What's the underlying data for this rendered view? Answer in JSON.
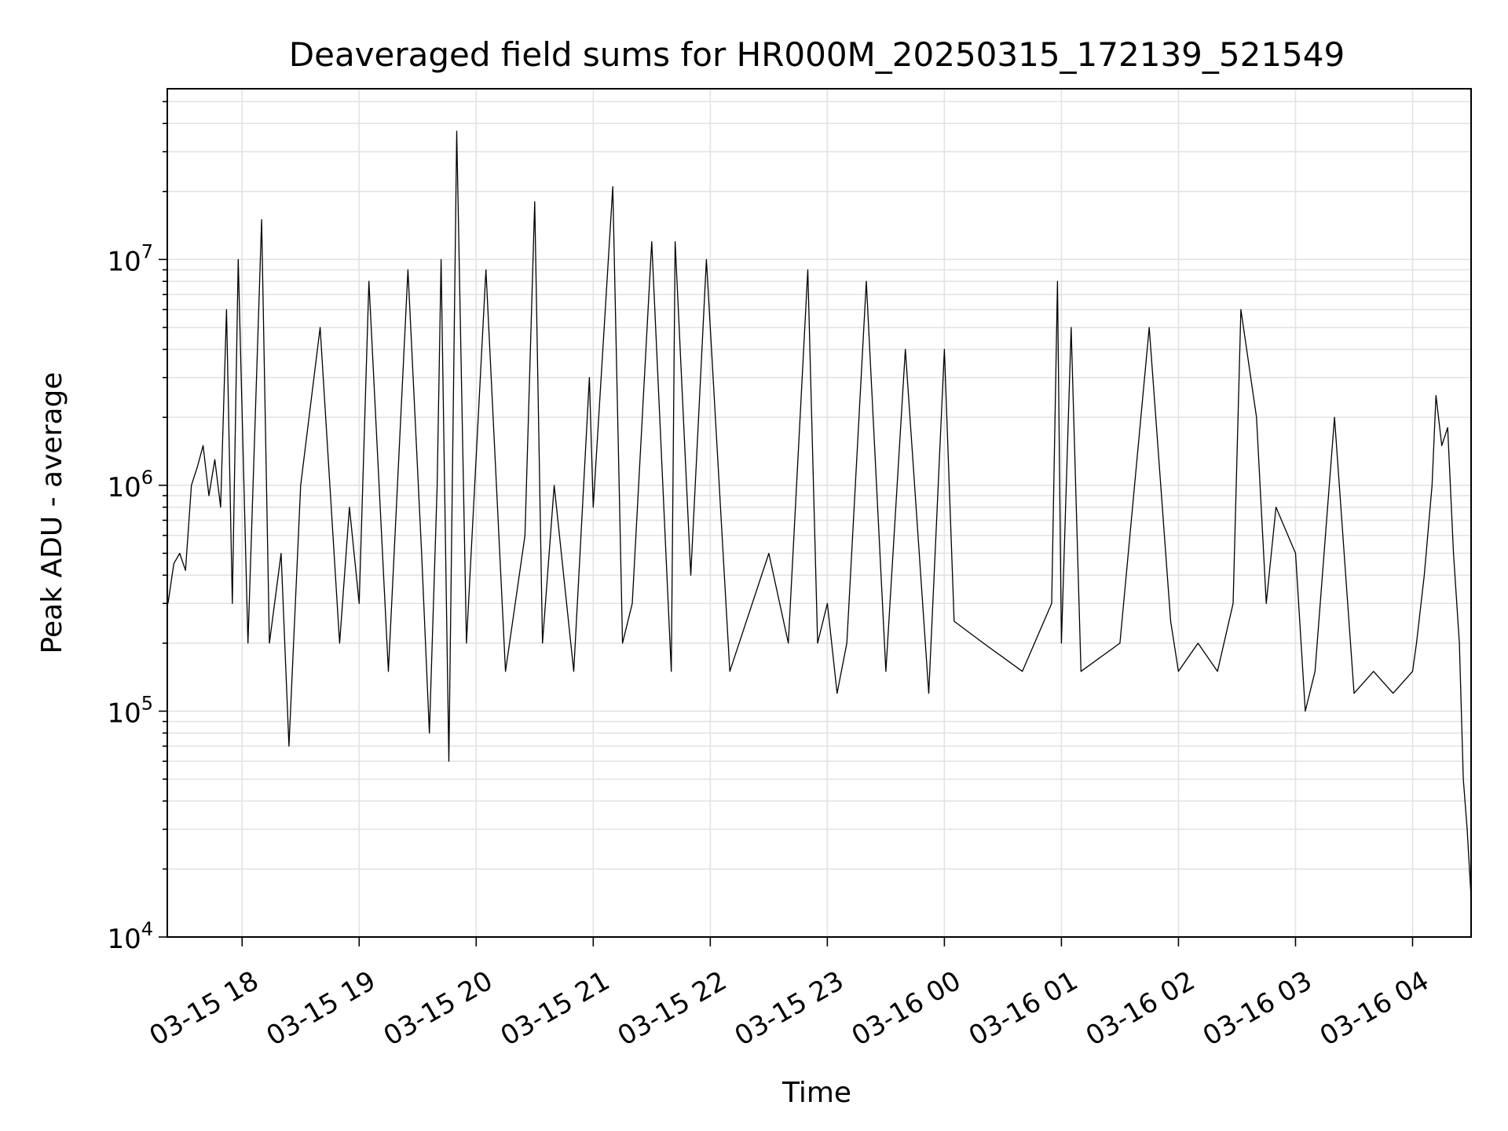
{
  "chart_data": {
    "type": "line",
    "title": "Deaveraged field sums for HR000M_20250315_172139_521549",
    "xlabel": "Time",
    "ylabel": "Peak ADU - average",
    "yscale": "log",
    "ylim": [
      10000,
      57000000
    ],
    "xlim": [
      "2025-03-15 17:21:39",
      "2025-03-16 04:30:00"
    ],
    "grid": true,
    "x_ticks": [
      {
        "value": "2025-03-15 18:00",
        "label": "03-15 18"
      },
      {
        "value": "2025-03-15 19:00",
        "label": "03-15 19"
      },
      {
        "value": "2025-03-15 20:00",
        "label": "03-15 20"
      },
      {
        "value": "2025-03-15 21:00",
        "label": "03-15 21"
      },
      {
        "value": "2025-03-15 22:00",
        "label": "03-15 22"
      },
      {
        "value": "2025-03-15 23:00",
        "label": "03-15 23"
      },
      {
        "value": "2025-03-16 00:00",
        "label": "03-16 00"
      },
      {
        "value": "2025-03-16 01:00",
        "label": "03-16 01"
      },
      {
        "value": "2025-03-16 02:00",
        "label": "03-16 02"
      },
      {
        "value": "2025-03-16 03:00",
        "label": "03-16 03"
      },
      {
        "value": "2025-03-16 04:00",
        "label": "03-16 04"
      }
    ],
    "y_ticks": [
      {
        "value": 10000,
        "base": "10",
        "exp": "4"
      },
      {
        "value": 100000,
        "base": "10",
        "exp": "5"
      },
      {
        "value": 1000000,
        "base": "10",
        "exp": "6"
      },
      {
        "value": 10000000,
        "base": "10",
        "exp": "7"
      }
    ],
    "series": [
      {
        "color": "#000000",
        "x": [
          "2025-03-15 17:22",
          "2025-03-15 17:25",
          "2025-03-15 17:28",
          "2025-03-15 17:31",
          "2025-03-15 17:34",
          "2025-03-15 17:37",
          "2025-03-15 17:40",
          "2025-03-15 17:43",
          "2025-03-15 17:46",
          "2025-03-15 17:49",
          "2025-03-15 17:52",
          "2025-03-15 17:55",
          "2025-03-15 17:58",
          "2025-03-15 18:03",
          "2025-03-15 18:10",
          "2025-03-15 18:14",
          "2025-03-15 18:20",
          "2025-03-15 18:24",
          "2025-03-15 18:30",
          "2025-03-15 18:40",
          "2025-03-15 18:50",
          "2025-03-15 18:55",
          "2025-03-15 19:00",
          "2025-03-15 19:05",
          "2025-03-15 19:15",
          "2025-03-15 19:25",
          "2025-03-15 19:32",
          "2025-03-15 19:36",
          "2025-03-15 19:40",
          "2025-03-15 19:42",
          "2025-03-15 19:46",
          "2025-03-15 19:50",
          "2025-03-15 19:55",
          "2025-03-15 20:05",
          "2025-03-15 20:15",
          "2025-03-15 20:25",
          "2025-03-15 20:30",
          "2025-03-15 20:34",
          "2025-03-15 20:40",
          "2025-03-15 20:50",
          "2025-03-15 20:58",
          "2025-03-15 21:00",
          "2025-03-15 21:10",
          "2025-03-15 21:15",
          "2025-03-15 21:20",
          "2025-03-15 21:30",
          "2025-03-15 21:40",
          "2025-03-15 21:42",
          "2025-03-15 21:50",
          "2025-03-15 21:58",
          "2025-03-15 22:10",
          "2025-03-15 22:30",
          "2025-03-15 22:40",
          "2025-03-15 22:50",
          "2025-03-15 22:55",
          "2025-03-15 23:00",
          "2025-03-15 23:05",
          "2025-03-15 23:10",
          "2025-03-15 23:20",
          "2025-03-15 23:30",
          "2025-03-15 23:40",
          "2025-03-15 23:52",
          "2025-03-16 00:00",
          "2025-03-16 00:05",
          "2025-03-16 00:20",
          "2025-03-16 00:40",
          "2025-03-16 00:55",
          "2025-03-16 00:58",
          "2025-03-16 01:00",
          "2025-03-16 01:05",
          "2025-03-16 01:10",
          "2025-03-16 01:30",
          "2025-03-16 01:45",
          "2025-03-16 01:56",
          "2025-03-16 02:00",
          "2025-03-16 02:10",
          "2025-03-16 02:20",
          "2025-03-16 02:28",
          "2025-03-16 02:32",
          "2025-03-16 02:40",
          "2025-03-16 02:45",
          "2025-03-16 02:50",
          "2025-03-16 03:00",
          "2025-03-16 03:05",
          "2025-03-16 03:10",
          "2025-03-16 03:20",
          "2025-03-16 03:30",
          "2025-03-16 03:40",
          "2025-03-16 03:50",
          "2025-03-16 04:00",
          "2025-03-16 04:02",
          "2025-03-16 04:06",
          "2025-03-16 04:10",
          "2025-03-16 04:12",
          "2025-03-16 04:15",
          "2025-03-16 04:18",
          "2025-03-16 04:21",
          "2025-03-16 04:24",
          "2025-03-16 04:26",
          "2025-03-16 04:28",
          "2025-03-16 04:30"
        ],
        "y": [
          300000,
          450000,
          500000,
          420000,
          1000000,
          1200000,
          1500000,
          900000,
          1300000,
          800000,
          6000000,
          300000,
          10000000,
          200000,
          15000000,
          200000,
          500000,
          70000,
          1000000,
          5000000,
          200000,
          800000,
          300000,
          8000000,
          150000,
          9000000,
          500000,
          80000,
          1000000,
          10000000,
          60000,
          37000000,
          200000,
          9000000,
          150000,
          600000,
          18000000,
          200000,
          1000000,
          150000,
          3000000,
          800000,
          21000000,
          200000,
          300000,
          12000000,
          150000,
          12000000,
          400000,
          10000000,
          150000,
          500000,
          200000,
          9000000,
          200000,
          300000,
          120000,
          200000,
          8000000,
          150000,
          4000000,
          120000,
          4000000,
          250000,
          200000,
          150000,
          300000,
          8000000,
          200000,
          5000000,
          150000,
          200000,
          5000000,
          250000,
          150000,
          200000,
          150000,
          300000,
          6000000,
          2000000,
          300000,
          800000,
          500000,
          100000,
          150000,
          2000000,
          120000,
          150000,
          120000,
          150000,
          200000,
          400000,
          1000000,
          2500000,
          1500000,
          1800000,
          500000,
          200000,
          50000,
          30000,
          15000
        ]
      }
    ]
  }
}
